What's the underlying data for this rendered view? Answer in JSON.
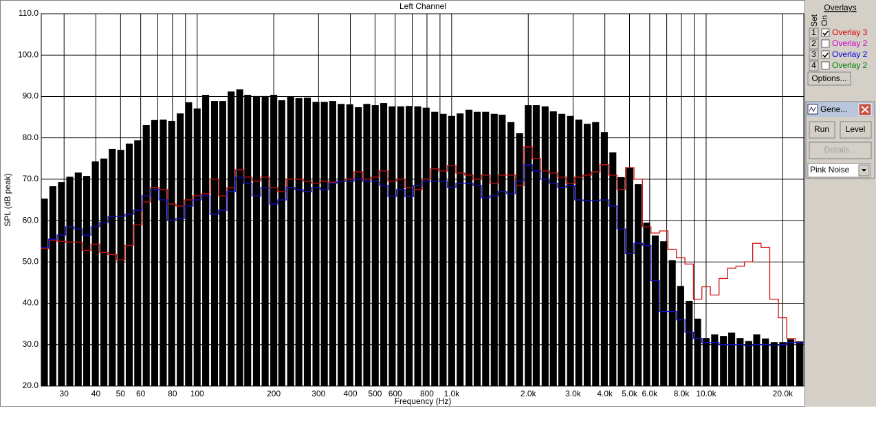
{
  "chart_data": {
    "type": "bar",
    "title": "Left Channel",
    "x_label": "Frequency (Hz)",
    "y_label": "SPL (dB peak)",
    "x_log": true,
    "grid": true,
    "color": "#000000",
    "x": [
      25.1,
      27.1,
      29.3,
      31.6,
      34.1,
      36.8,
      39.8,
      43.0,
      46.4,
      50.1,
      54.1,
      58.4,
      63.1,
      68.1,
      73.6,
      79.4,
      85.8,
      92.6,
      100,
      108,
      117,
      126,
      136,
      147,
      158,
      171,
      185,
      200,
      215,
      233,
      251,
      271,
      293,
      316,
      341,
      368,
      398,
      430,
      464,
      501,
      541,
      584,
      631,
      681,
      736,
      794,
      858,
      926,
      1000,
      1080,
      1170,
      1260,
      1360,
      1470,
      1580,
      1710,
      1850,
      2000,
      2150,
      2330,
      2510,
      2710,
      2930,
      3160,
      3410,
      3680,
      3980,
      4300,
      4640,
      5010,
      5410,
      5840,
      6310,
      6810,
      7360,
      7940,
      8580,
      9260,
      10000,
      10800,
      11700,
      12600,
      13600,
      14700,
      15800,
      17100,
      18500,
      20000,
      21500,
      23300
    ],
    "values": [
      65.3,
      68.3,
      69.3,
      70.6,
      71.6,
      70.8,
      74.3,
      75.0,
      77.3,
      77.1,
      78.6,
      79.4,
      83.1,
      84.3,
      84.4,
      84.1,
      85.9,
      88.6,
      87.1,
      90.4,
      88.9,
      88.9,
      91.2,
      91.7,
      90.4,
      90.1,
      90.1,
      90.4,
      89.1,
      89.9,
      89.6,
      89.7,
      88.7,
      88.7,
      88.9,
      88.2,
      88.1,
      87.4,
      88.2,
      87.9,
      88.4,
      87.6,
      87.6,
      87.7,
      87.6,
      87.3,
      86.3,
      85.8,
      85.3,
      85.9,
      86.8,
      86.3,
      86.3,
      85.8,
      85.6,
      83.8,
      81.1,
      87.9,
      87.9,
      87.6,
      86.4,
      85.8,
      85.3,
      84.4,
      83.4,
      83.8,
      81.4,
      76.5,
      70.5,
      72.8,
      68.8,
      59.5,
      56.4,
      55.0,
      50.4,
      44.2,
      40.6,
      36.3,
      31.6,
      32.5,
      32.1,
      32.9,
      31.6,
      30.9,
      32.5,
      31.5,
      30.6,
      30.6,
      31.3,
      30.8
    ],
    "overlays": [
      {
        "color": "#d01010",
        "values": [
          53.2,
          55.2,
          55.0,
          54.8,
          54.8,
          52.8,
          54.3,
          52.3,
          51.8,
          50.5,
          54.0,
          59.0,
          64.5,
          68.0,
          67.5,
          64.0,
          63.5,
          65.0,
          66.0,
          66.5,
          70.0,
          66.0,
          68.0,
          72.3,
          70.5,
          69.5,
          70.5,
          68.0,
          67.0,
          70.0,
          70.0,
          69.5,
          69.0,
          69.5,
          69.3,
          69.5,
          70.0,
          71.8,
          70.0,
          70.5,
          72.0,
          69.5,
          70.0,
          68.0,
          67.5,
          70.0,
          72.5,
          72.0,
          73.3,
          71.5,
          71.0,
          70.0,
          71.0,
          69.0,
          71.0,
          71.0,
          68.5,
          77.8,
          75.0,
          72.0,
          71.5,
          70.5,
          69.0,
          70.5,
          71.0,
          71.8,
          73.5,
          71.0,
          67.5,
          72.8,
          70.0,
          58.5,
          57.0,
          57.5,
          53.0,
          51.0,
          49.5,
          41.0,
          44.0,
          42.0,
          46.0,
          48.5,
          49.0,
          50.0,
          54.5,
          53.5,
          41.0,
          36.5,
          31.5,
          30.5
        ]
      },
      {
        "color": "#1010c8",
        "values": [
          53.5,
          55.5,
          56.5,
          58.5,
          58.0,
          56.5,
          58.5,
          59.5,
          61.0,
          61.0,
          61.5,
          62.5,
          66.0,
          67.5,
          65.0,
          60.0,
          60.5,
          63.5,
          65.0,
          66.0,
          61.5,
          62.5,
          67.0,
          70.5,
          69.0,
          66.0,
          68.0,
          64.0,
          65.0,
          68.0,
          67.5,
          67.0,
          68.0,
          67.5,
          69.0,
          69.5,
          69.5,
          70.0,
          69.5,
          69.5,
          68.5,
          65.8,
          67.5,
          65.8,
          68.5,
          69.5,
          69.5,
          69.5,
          68.0,
          69.0,
          69.0,
          68.5,
          65.5,
          66.0,
          67.0,
          66.5,
          69.5,
          73.5,
          72.0,
          70.0,
          69.0,
          68.0,
          68.5,
          65.0,
          64.8,
          64.8,
          65.0,
          63.5,
          58.0,
          52.0,
          54.5,
          54.0,
          45.5,
          38.0,
          38.0,
          36.0,
          33.0,
          31.5,
          30.5,
          30.5,
          30.0,
          30.0,
          30.0,
          29.8,
          30.0,
          30.0,
          29.8,
          30.0,
          30.5,
          30.5
        ]
      }
    ],
    "xlim": [
      24.4,
      24200
    ],
    "xticks": [
      30,
      40,
      50,
      60,
      80,
      100,
      200,
      300,
      400,
      500,
      600,
      800,
      {
        "value": 1000,
        "label": "1.0k"
      },
      {
        "value": 2000,
        "label": "2.0k"
      },
      {
        "value": 3000,
        "label": "3.0k"
      },
      {
        "value": 4000,
        "label": "4.0k"
      },
      {
        "value": 5000,
        "label": "5.0k"
      },
      {
        "value": 6000,
        "label": "6.0k"
      },
      {
        "value": 8000,
        "label": "8.0k"
      },
      {
        "value": 10000,
        "label": "10.0k"
      },
      {
        "value": 20000,
        "label": "20.0k"
      }
    ],
    "xgrid_minor": [
      70,
      90,
      700,
      900,
      7000,
      9000
    ],
    "ylim": [
      20,
      110
    ],
    "yticks": [
      {
        "value": 20,
        "label": "20.0"
      },
      {
        "value": 30,
        "label": "30.0"
      },
      {
        "value": 40,
        "label": "40.0"
      },
      {
        "value": 50,
        "label": "50.0"
      },
      {
        "value": 60,
        "label": "60.0"
      },
      {
        "value": 70,
        "label": "70.0"
      },
      {
        "value": 80,
        "label": "80.0"
      },
      {
        "value": 90,
        "label": "90.0"
      },
      {
        "value": 100,
        "label": "100.0"
      },
      {
        "value": 110,
        "label": "110.0"
      }
    ]
  },
  "side_panel": {
    "title": "Overlays",
    "set_header": "Set",
    "on_header": "On",
    "rows": [
      {
        "set": "1",
        "label": "Overlay 3",
        "checked": true,
        "color": "#e00000"
      },
      {
        "set": "2",
        "label": "Overlay 2",
        "checked": false,
        "color": "#d000d0"
      },
      {
        "set": "3",
        "label": "Overlay 2",
        "checked": true,
        "color": "#0000e0"
      },
      {
        "set": "4",
        "label": "Overlay 2",
        "checked": false,
        "color": "#008000"
      }
    ],
    "options_button": "Options...",
    "generator": {
      "title": "Gene...",
      "run": "Run",
      "level": "Level",
      "details": "Details...",
      "signal": "Pink Noise"
    }
  }
}
